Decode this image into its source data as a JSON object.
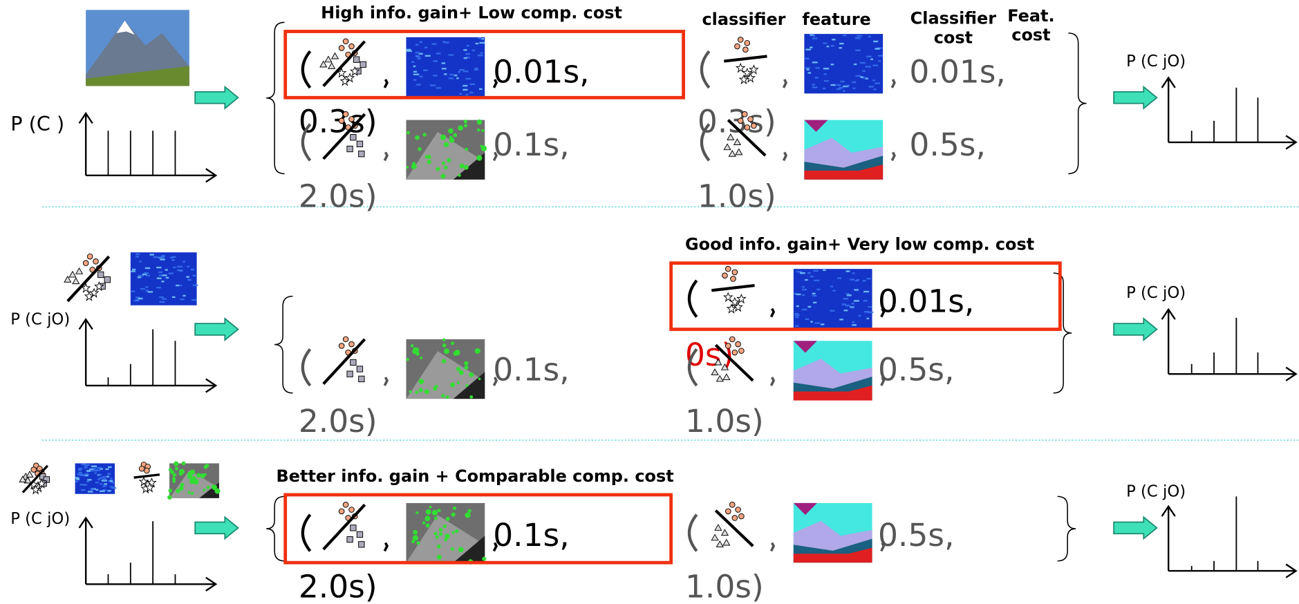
{
  "column_headers": {
    "classifier": "classifier",
    "feature": "feature",
    "classifier_cost": [
      "Classifier",
      "cost"
    ],
    "feature_cost": [
      "Feat.",
      "cost"
    ]
  },
  "rows": [
    {
      "prior_label": "P (C )",
      "heading": "High info. gain+ Low comp. cost",
      "posterior_label": "P (C jO)",
      "options": [
        {
          "classifier_cost": "0.01s,",
          "feature_cost": "0.3s)",
          "highlighted": true
        },
        {
          "classifier_cost": "0.1s,",
          "feature_cost": "2.0s)",
          "highlighted": false
        },
        {
          "classifier_cost": "0.01s,",
          "feature_cost": "0.3s)",
          "highlighted": false
        },
        {
          "classifier_cost": "0.5s,",
          "feature_cost": "1.0s)",
          "highlighted": false
        }
      ]
    },
    {
      "prior_label": "P (C jO)",
      "heading": "Good info. gain+ Very low comp. cost",
      "posterior_label": "P (C jO)",
      "options": [
        {
          "classifier_cost": "0.1s,",
          "feature_cost": "2.0s)",
          "highlighted": false
        },
        {
          "classifier_cost": "0.01s,",
          "feature_cost": "0s)",
          "feature_cost_color": "#e00000",
          "highlighted": true
        },
        {
          "classifier_cost": "0.5s,",
          "feature_cost": "1.0s)",
          "highlighted": false
        }
      ]
    },
    {
      "prior_label": "P (C jO)",
      "heading": "Better info. gain + Comparable comp. cost",
      "posterior_label": "P (C jO)",
      "options": [
        {
          "classifier_cost": "0.1s,",
          "feature_cost": "2.0s)",
          "highlighted": true
        },
        {
          "classifier_cost": "0.5s,",
          "feature_cost": "1.0s)",
          "highlighted": false
        }
      ]
    }
  ]
}
